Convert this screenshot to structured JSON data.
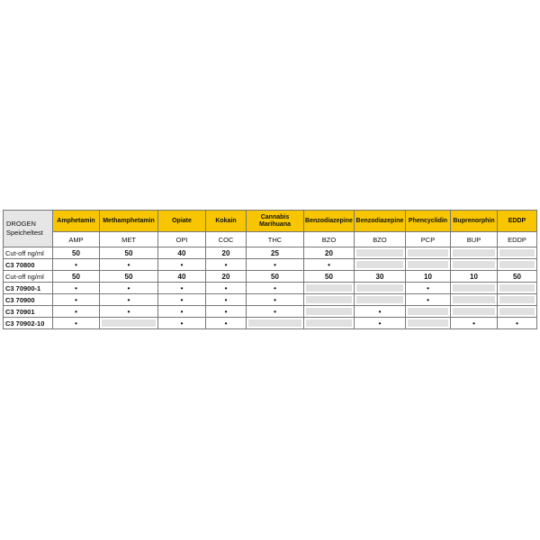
{
  "corner": {
    "line1": "DROGEN",
    "line2": "Speicheltest"
  },
  "columns": [
    {
      "name": "Amphetamin",
      "abbr": "AMP"
    },
    {
      "name": "Methamphetamin",
      "abbr": "MET"
    },
    {
      "name": "Opiate",
      "abbr": "OPI"
    },
    {
      "name": "Kokain",
      "abbr": "COC"
    },
    {
      "name": "Cannabis Marihuana",
      "abbr": "THC"
    },
    {
      "name": "Benzodiazepine",
      "abbr": "BZO"
    },
    {
      "name": "Benzodiazepine",
      "abbr": "BZO"
    },
    {
      "name": "Phencyclidin",
      "abbr": "PCP"
    },
    {
      "name": "Buprenorphin",
      "abbr": "BUP"
    },
    {
      "name": "EDDP",
      "abbr": "EDDP"
    }
  ],
  "rows": [
    {
      "label": "Cut-off ng/ml",
      "type": "cutoff",
      "cells": [
        "50",
        "50",
        "40",
        "20",
        "25",
        "20",
        null,
        null,
        null,
        null
      ]
    },
    {
      "label": "C3 70800",
      "type": "product",
      "cells": [
        "•",
        "•",
        "•",
        "•",
        "•",
        "•",
        null,
        null,
        null,
        null
      ]
    },
    {
      "label": "Cut-off ng/ml",
      "type": "cutoff",
      "cells": [
        "50",
        "50",
        "40",
        "20",
        "50",
        "50",
        "30",
        "10",
        "10",
        "50"
      ]
    },
    {
      "label": "C3 70900-1",
      "type": "product",
      "cells": [
        "•",
        "•",
        "•",
        "•",
        "•",
        null,
        null,
        "•",
        null,
        null
      ]
    },
    {
      "label": "C3 70900",
      "type": "product",
      "cells": [
        "•",
        "•",
        "•",
        "•",
        "•",
        null,
        null,
        "•",
        null,
        null
      ]
    },
    {
      "label": "C3 70901",
      "type": "product",
      "cells": [
        "•",
        "•",
        "•",
        "•",
        "•",
        null,
        "•",
        null,
        null,
        null
      ]
    },
    {
      "label": "C3 70902-10",
      "type": "product",
      "cells": [
        "•",
        null,
        "•",
        "•",
        null,
        null,
        "•",
        null,
        "•",
        "•"
      ]
    }
  ],
  "colors": {
    "header": "#f7c600",
    "unavailable": "#e0e0e0"
  }
}
